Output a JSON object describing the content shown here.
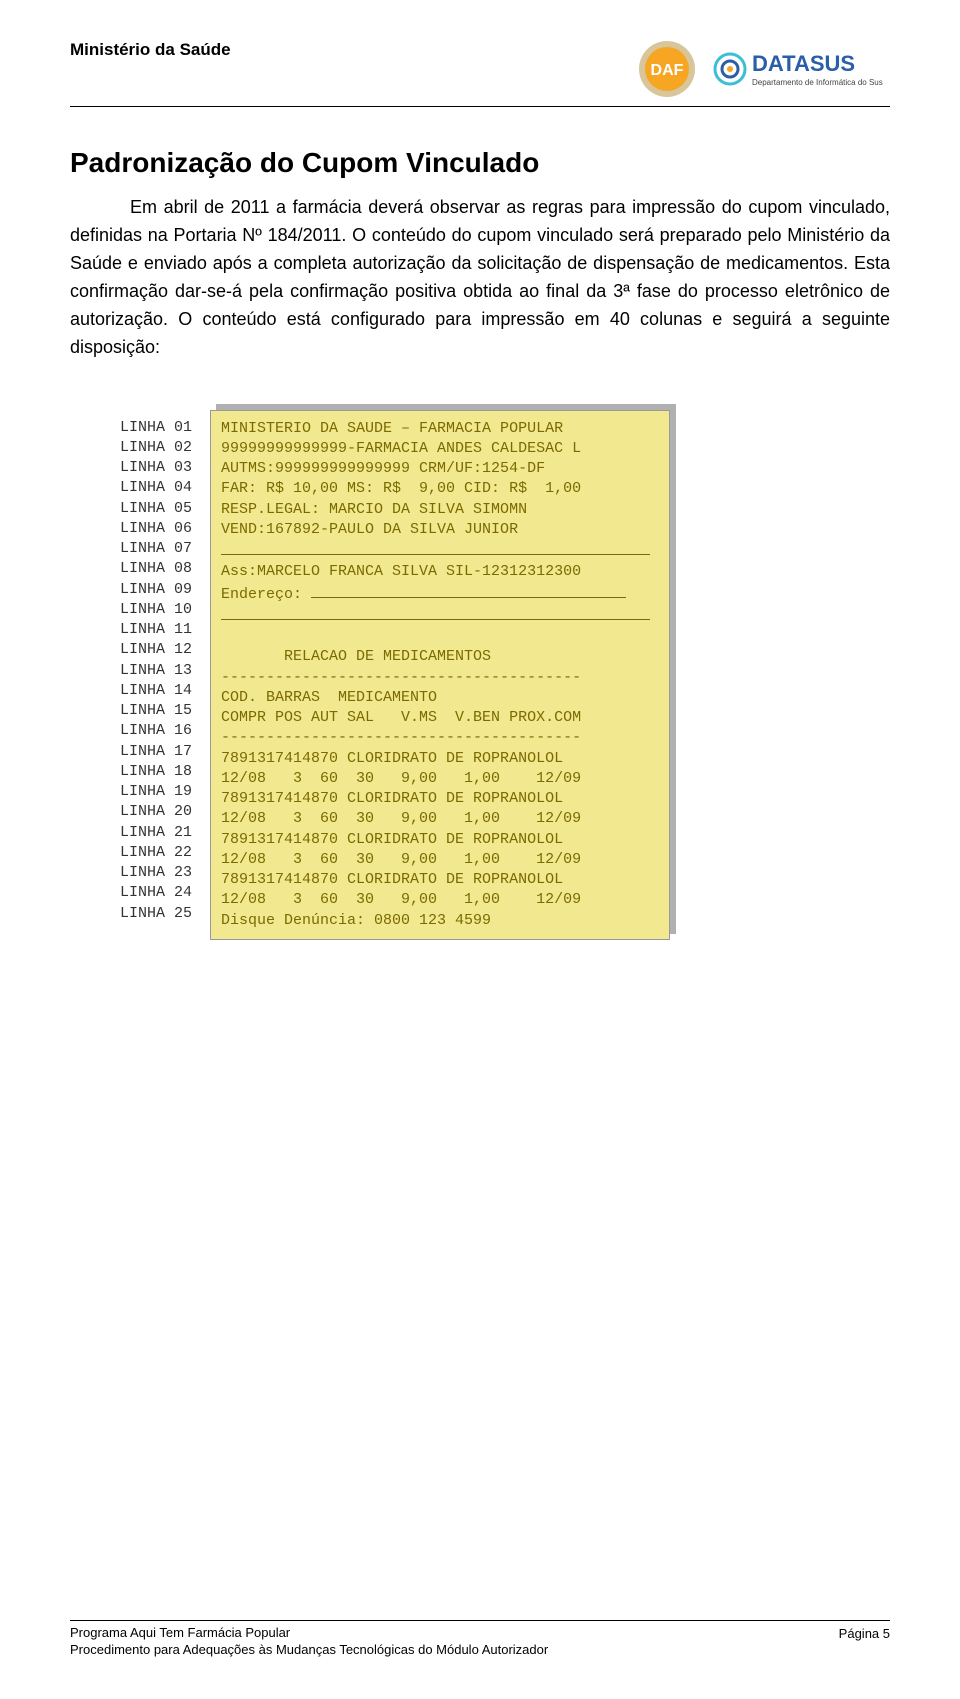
{
  "header": {
    "ministry": "Ministério da Saúde",
    "daf_label": "DAF",
    "datasus_name": "DATASUS",
    "datasus_sub": "Departamento de Informática do Sus"
  },
  "title": "Padronização do Cupom Vinculado",
  "paragraph": "Em abril de 2011 a farmácia deverá observar as regras para impressão do cupom vinculado, definidas na Portaria Nº 184/2011. O conteúdo do cupom vinculado será preparado pelo Ministério da Saúde e enviado após a completa autorização da solicitação de dispensação de medicamentos. Esta confirmação dar-se-á pela confirmação positiva obtida ao final da 3ª fase do processo eletrônico de autorização. O conteúdo está configurado para impressão em 40 colunas e seguirá a seguinte disposição:",
  "line_labels": [
    "LINHA 01",
    "LINHA 02",
    "LINHA 03",
    "LINHA 04",
    "LINHA 05",
    "LINHA 06",
    "LINHA 07",
    "LINHA 08",
    "LINHA 09",
    "LINHA 10",
    "LINHA 11",
    "LINHA 12",
    "LINHA 13",
    "LINHA 14",
    "LINHA 15",
    "LINHA 16",
    "LINHA 17",
    "LINHA 18",
    "LINHA 19",
    "LINHA 20",
    "LINHA 21",
    "LINHA 22",
    "LINHA 23",
    "LINHA 24",
    "LINHA 25"
  ],
  "receipt": {
    "l01": "MINISTERIO DA SAUDE – FARMACIA POPULAR",
    "l02": "99999999999999-FARMACIA ANDES CALDESAC L",
    "l03": "AUTMS:999999999999999 CRM/UF:1254-DF",
    "l04": "FAR: R$ 10,00 MS: R$  9,00 CID: R$  1,00",
    "l05": "RESP.LEGAL: MARCIO DA SILVA SIMOMN",
    "l06": "VEND:167892-PAULO DA SILVA JUNIOR",
    "l08": "Ass:MARCELO FRANCA SILVA SIL-12312312300",
    "l09a": "Endereço: ",
    "l12": "       RELACAO DE MEDICAMENTOS",
    "l13": "----------------------------------------",
    "l14": "COD. BARRAS  MEDICAMENTO",
    "l15": "COMPR POS AUT SAL   V.MS  V.BEN PROX.COM",
    "l16": "----------------------------------------",
    "l17": "7891317414870 CLORIDRATO DE ROPRANOLOL",
    "l18": "12/08   3  60  30   9,00   1,00    12/09",
    "l19": "7891317414870 CLORIDRATO DE ROPRANOLOL",
    "l20": "12/08   3  60  30   9,00   1,00    12/09",
    "l21": "7891317414870 CLORIDRATO DE ROPRANOLOL",
    "l22": "12/08   3  60  30   9,00   1,00    12/09",
    "l23": "7891317414870 CLORIDRATO DE ROPRANOLOL",
    "l24": "12/08   3  60  30   9,00   1,00    12/09",
    "l25": "Disque Denúncia: 0800 123 4599"
  },
  "footer": {
    "line1": "Programa Aqui Tem Farmácia Popular",
    "line2": "Procedimento para Adequações às Mudanças Tecnológicas do Módulo Autorizador",
    "page": "Página 5"
  },
  "colors": {
    "receipt_bg": "#f2e890",
    "receipt_text": "#7a6b00",
    "shadow": "#b0b0b0",
    "daf_orange": "#f6a623",
    "daf_tan": "#d9c59a",
    "datasus_blue": "#2a5ea8",
    "datasus_cyan": "#3bbfd6"
  }
}
